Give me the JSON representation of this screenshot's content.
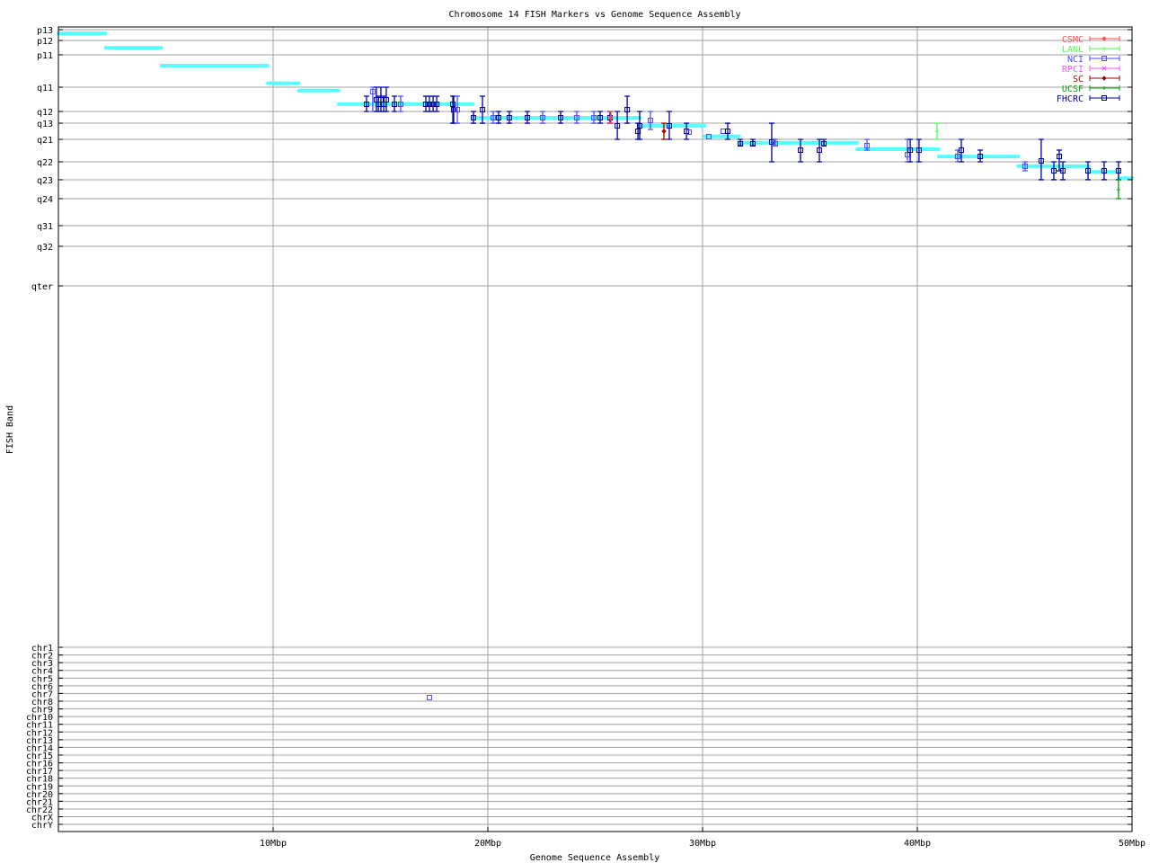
{
  "chart_data": {
    "type": "scatter",
    "title": "Chromosome 14 FISH Markers vs Genome Sequence Assembly",
    "xlabel": "Genome Sequence Assembly",
    "ylabel": "FISH Band",
    "xlim": [
      0,
      50
    ],
    "ylim": [
      0,
      100
    ],
    "grid": true,
    "legend_position": "top-right",
    "xticks": [
      {
        "v": 10,
        "label": "10Mbp"
      },
      {
        "v": 20,
        "label": "20Mbp"
      },
      {
        "v": 30,
        "label": "30Mbp"
      },
      {
        "v": 40,
        "label": "40Mbp"
      },
      {
        "v": 50,
        "label": "50Mbp"
      }
    ],
    "yticks": [
      {
        "v": 0.34,
        "label": "p13"
      },
      {
        "v": 1.68,
        "label": "p12"
      },
      {
        "v": 3.46,
        "label": "p11"
      },
      {
        "v": 7.49,
        "label": "q11"
      },
      {
        "v": 10.5,
        "label": "q12"
      },
      {
        "v": 11.96,
        "label": "q13"
      },
      {
        "v": 13.97,
        "label": "q21"
      },
      {
        "v": 16.76,
        "label": "q22"
      },
      {
        "v": 18.99,
        "label": "q23"
      },
      {
        "v": 21.34,
        "label": "q24"
      },
      {
        "v": 24.69,
        "label": "q31"
      },
      {
        "v": 27.26,
        "label": "q32"
      },
      {
        "v": 32.18,
        "label": "qter"
      },
      {
        "v": 77.1,
        "label": "chr1"
      },
      {
        "v": 78.06,
        "label": "chr2"
      },
      {
        "v": 79.01,
        "label": "chr3"
      },
      {
        "v": 79.97,
        "label": "chr4"
      },
      {
        "v": 80.93,
        "label": "chr5"
      },
      {
        "v": 81.89,
        "label": "chr6"
      },
      {
        "v": 82.84,
        "label": "chr7"
      },
      {
        "v": 83.8,
        "label": "chr8"
      },
      {
        "v": 84.76,
        "label": "chr9"
      },
      {
        "v": 85.71,
        "label": "chr10"
      },
      {
        "v": 86.67,
        "label": "chr11"
      },
      {
        "v": 87.63,
        "label": "chr12"
      },
      {
        "v": 88.59,
        "label": "chr13"
      },
      {
        "v": 89.54,
        "label": "chr14"
      },
      {
        "v": 90.5,
        "label": "chr15"
      },
      {
        "v": 91.46,
        "label": "chr16"
      },
      {
        "v": 92.41,
        "label": "chr17"
      },
      {
        "v": 93.37,
        "label": "chr18"
      },
      {
        "v": 94.33,
        "label": "chr19"
      },
      {
        "v": 95.29,
        "label": "chr20"
      },
      {
        "v": 96.24,
        "label": "chr21"
      },
      {
        "v": 97.2,
        "label": "chr22"
      },
      {
        "v": 98.16,
        "label": "chrX"
      },
      {
        "v": 99.11,
        "label": "chrY"
      }
    ],
    "legend": [
      {
        "name": "CSMC",
        "color": "#ff4d4d",
        "marker": "diamond"
      },
      {
        "name": "LANL",
        "color": "#4dff4d",
        "marker": "plus"
      },
      {
        "name": "NCI",
        "color": "#4d4dff",
        "marker": "square"
      },
      {
        "name": "RPCI",
        "color": "#ff4dff",
        "marker": "cross"
      },
      {
        "name": "SC",
        "color": "#a00000",
        "marker": "diamond"
      },
      {
        "name": "UCSF",
        "color": "#00a000",
        "marker": "plus"
      },
      {
        "name": "FHCRC",
        "color": "#0000a0",
        "marker": "square"
      }
    ],
    "contig_color": "#55ffff",
    "contigs": [
      [
        0,
        2.2,
        0.8
      ],
      [
        2.2,
        4.8,
        2.6
      ],
      [
        4.8,
        9.75,
        4.8
      ],
      [
        9.75,
        11.2,
        7.0
      ],
      [
        11.2,
        13.05,
        7.9
      ],
      [
        13.05,
        19.3,
        9.6
      ],
      [
        19.3,
        27.1,
        11.3
      ],
      [
        27.1,
        30.1,
        12.3
      ],
      [
        30.1,
        31.7,
        13.6
      ],
      [
        31.7,
        37.2,
        14.4
      ],
      [
        37.2,
        41.0,
        15.2
      ],
      [
        41.0,
        44.7,
        16.1
      ],
      [
        44.7,
        48.0,
        17.3
      ],
      [
        48.0,
        49.4,
        18.0
      ],
      [
        49.4,
        50.0,
        18.8
      ]
    ],
    "markers_fields": [
      "x",
      "y",
      "ylow",
      "yhigh",
      "source"
    ],
    "markers": [
      [
        14.35,
        9.61,
        8.6,
        10.5,
        "FHCRC"
      ],
      [
        14.64,
        8.04,
        7.49,
        10.5,
        "NCI"
      ],
      [
        14.81,
        9.05,
        7.49,
        10.5,
        "FHCRC"
      ],
      [
        14.9,
        9.61,
        8.6,
        10.5,
        "FHCRC"
      ],
      [
        15.02,
        9.05,
        7.49,
        10.5,
        "FHCRC"
      ],
      [
        15.15,
        9.61,
        8.6,
        10.5,
        "FHCRC"
      ],
      [
        15.27,
        9.05,
        7.49,
        10.5,
        "FHCRC"
      ],
      [
        15.65,
        9.61,
        8.6,
        10.5,
        "FHCRC"
      ],
      [
        15.94,
        9.61,
        8.6,
        10.5,
        "NCI"
      ],
      [
        17.11,
        9.61,
        8.6,
        10.5,
        "FHCRC"
      ],
      [
        17.28,
        9.61,
        8.6,
        10.5,
        "FHCRC"
      ],
      [
        17.45,
        9.61,
        8.6,
        10.5,
        "FHCRC"
      ],
      [
        17.62,
        9.61,
        8.6,
        10.5,
        "FHCRC"
      ],
      [
        18.37,
        9.61,
        8.6,
        11.96,
        "FHCRC"
      ],
      [
        18.41,
        10.28,
        8.6,
        11.96,
        "FHCRC"
      ],
      [
        18.58,
        10.28,
        8.6,
        11.96,
        "NCI"
      ],
      [
        19.33,
        11.28,
        10.5,
        11.96,
        "FHCRC"
      ],
      [
        19.75,
        10.28,
        8.6,
        11.96,
        "FHCRC"
      ],
      [
        20.25,
        11.28,
        10.5,
        11.96,
        "NCI"
      ],
      [
        20.5,
        11.28,
        10.5,
        11.96,
        "FHCRC"
      ],
      [
        21.0,
        11.28,
        10.5,
        11.96,
        "FHCRC"
      ],
      [
        21.84,
        11.28,
        10.5,
        11.96,
        "FHCRC"
      ],
      [
        22.55,
        11.28,
        10.5,
        11.96,
        "NCI"
      ],
      [
        23.39,
        11.28,
        10.5,
        11.96,
        "FHCRC"
      ],
      [
        24.14,
        11.28,
        10.5,
        11.96,
        "NCI"
      ],
      [
        24.94,
        11.28,
        10.5,
        11.96,
        "NCI"
      ],
      [
        25.23,
        11.28,
        10.5,
        11.96,
        "FHCRC"
      ],
      [
        25.69,
        11.28,
        10.5,
        11.96,
        "FHCRC"
      ],
      [
        25.73,
        11.28,
        10.5,
        11.96,
        "CSMC"
      ],
      [
        26.03,
        12.29,
        10.5,
        13.97,
        "FHCRC"
      ],
      [
        26.49,
        10.28,
        8.6,
        11.96,
        "FHCRC"
      ],
      [
        26.99,
        12.96,
        11.96,
        13.97,
        "FHCRC"
      ],
      [
        27.07,
        12.29,
        10.5,
        13.97,
        "FHCRC"
      ],
      [
        27.57,
        11.62,
        10.5,
        12.74,
        "NCI"
      ],
      [
        28.2,
        12.96,
        11.96,
        13.97,
        "SC"
      ],
      [
        28.45,
        12.29,
        10.5,
        13.97,
        "FHCRC"
      ],
      [
        29.25,
        12.96,
        11.96,
        13.97,
        "FHCRC"
      ],
      [
        29.37,
        13.07,
        13.07,
        13.07,
        "NCI"
      ],
      [
        30.29,
        13.63,
        13.63,
        13.63,
        "NCI"
      ],
      [
        30.96,
        12.96,
        12.96,
        12.96,
        "NCI"
      ],
      [
        31.17,
        12.96,
        11.96,
        13.97,
        "FHCRC"
      ],
      [
        31.76,
        14.53,
        13.97,
        14.75,
        "FHCRC"
      ],
      [
        32.34,
        14.53,
        13.97,
        14.75,
        "FHCRC"
      ],
      [
        33.22,
        14.3,
        11.96,
        16.76,
        "FHCRC"
      ],
      [
        33.39,
        14.53,
        13.97,
        14.75,
        "NCI"
      ],
      [
        34.56,
        15.31,
        13.97,
        16.76,
        "FHCRC"
      ],
      [
        35.44,
        15.31,
        13.97,
        16.76,
        "FHCRC"
      ],
      [
        35.65,
        14.53,
        13.97,
        14.75,
        "FHCRC"
      ],
      [
        37.66,
        14.75,
        13.97,
        15.31,
        "NCI"
      ],
      [
        39.54,
        15.87,
        13.97,
        16.76,
        "NCI"
      ],
      [
        39.67,
        15.31,
        13.97,
        16.76,
        "FHCRC"
      ],
      [
        40.08,
        15.31,
        13.97,
        16.76,
        "FHCRC"
      ],
      [
        40.92,
        12.96,
        11.96,
        13.97,
        "LANL"
      ],
      [
        41.88,
        16.09,
        15.31,
        16.76,
        "NCI"
      ],
      [
        42.05,
        15.31,
        13.97,
        16.76,
        "FHCRC"
      ],
      [
        42.93,
        16.09,
        15.31,
        16.76,
        "FHCRC"
      ],
      [
        45.02,
        17.32,
        16.76,
        17.88,
        "NCI"
      ],
      [
        45.77,
        16.65,
        13.97,
        18.99,
        "FHCRC"
      ],
      [
        46.36,
        17.88,
        16.76,
        18.99,
        "FHCRC"
      ],
      [
        46.61,
        16.09,
        15.31,
        17.88,
        "FHCRC"
      ],
      [
        46.78,
        17.88,
        16.76,
        18.99,
        "FHCRC"
      ],
      [
        47.95,
        17.88,
        16.76,
        18.99,
        "FHCRC"
      ],
      [
        48.7,
        17.88,
        16.76,
        18.99,
        "FHCRC"
      ],
      [
        49.37,
        17.88,
        16.76,
        18.99,
        "FHCRC"
      ],
      [
        49.37,
        20.22,
        18.99,
        21.34,
        "UCSF"
      ],
      [
        17.28,
        83.35,
        83.35,
        83.35,
        "NCI"
      ]
    ]
  }
}
